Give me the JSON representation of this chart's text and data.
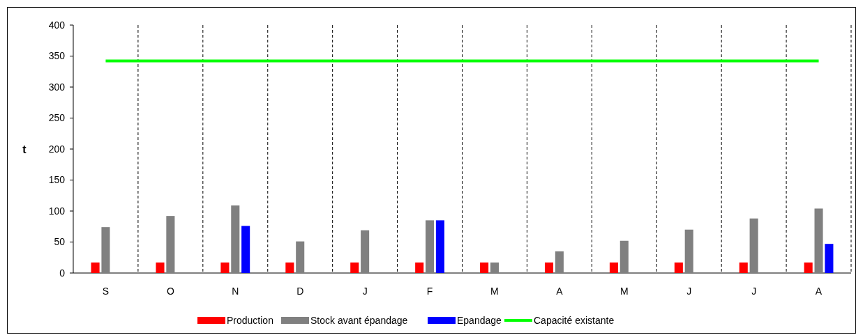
{
  "chart_data": {
    "type": "bar",
    "ylabel": "t",
    "categories": [
      "S",
      "O",
      "N",
      "D",
      "J",
      "F",
      "M",
      "A",
      "M",
      "J",
      "J",
      "A"
    ],
    "series": [
      {
        "name": "Production",
        "color": "#ff0000",
        "values": [
          17,
          17,
          17,
          17,
          17,
          17,
          17,
          17,
          17,
          17,
          17,
          17
        ]
      },
      {
        "name": "Stock avant épandage",
        "color": "#808080",
        "values": [
          74,
          92,
          109,
          51,
          69,
          85,
          17,
          35,
          52,
          70,
          88,
          104
        ]
      },
      {
        "name": "Epandage",
        "color": "#0000ff",
        "values": [
          null,
          null,
          76,
          null,
          null,
          85,
          null,
          null,
          null,
          null,
          null,
          47
        ]
      },
      {
        "name": "Capacité existante",
        "type": "line",
        "color": "#00ff00",
        "values": [
          342,
          342,
          342,
          342,
          342,
          342,
          342,
          342,
          342,
          342,
          342,
          342
        ]
      }
    ],
    "ylim": [
      0,
      400
    ],
    "yticks": [
      0,
      50,
      100,
      150,
      200,
      250,
      300,
      350,
      400
    ],
    "grid": "x",
    "legend": "bottom"
  }
}
